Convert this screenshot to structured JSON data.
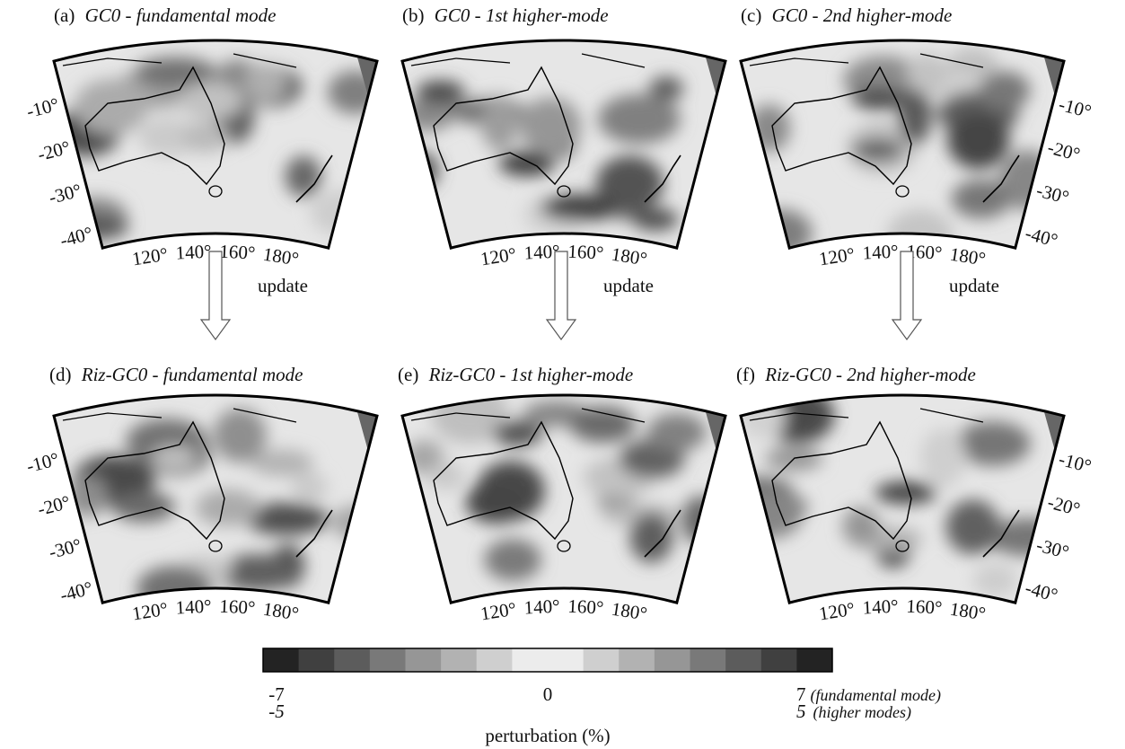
{
  "panels": [
    {
      "label": "(a)",
      "title": "GC0 - fundamental mode",
      "lat_labels": [
        "-10°",
        "-20°",
        "-30°",
        "-40°"
      ],
      "lon_labels": [
        "120°",
        "140°",
        "160°",
        "180°"
      ]
    },
    {
      "label": "(b)",
      "title": "GC0 - 1st higher-mode",
      "lat_labels": [],
      "lon_labels": [
        "120°",
        "140°",
        "160°",
        "180°"
      ]
    },
    {
      "label": "(c)",
      "title": "GC0 - 2nd higher-mode",
      "lat_labels": [
        "-10°",
        "-20°",
        "-30°",
        "-40°"
      ],
      "lon_labels": [
        "120°",
        "140°",
        "160°",
        "180°"
      ]
    },
    {
      "label": "(d)",
      "title": "Riz-GC0 - fundamental mode",
      "lat_labels": [
        "-10°",
        "-20°",
        "-30°",
        "-40°"
      ],
      "lon_labels": [
        "120°",
        "140°",
        "160°",
        "180°"
      ]
    },
    {
      "label": "(e)",
      "title": "Riz-GC0 - 1st higher-mode",
      "lat_labels": [],
      "lon_labels": [
        "120°",
        "140°",
        "160°",
        "180°"
      ]
    },
    {
      "label": "(f)",
      "title": "Riz-GC0 - 2nd higher-mode",
      "lat_labels": [
        "-10°",
        "-20°",
        "-30°",
        "-40°"
      ],
      "lon_labels": [
        "120°",
        "140°",
        "160°",
        "180°"
      ]
    }
  ],
  "update_labels": [
    "update",
    "update",
    "update"
  ],
  "colorbar": {
    "title": "perturbation (%)",
    "scales": [
      {
        "min": -7,
        "zero": 0,
        "max": 7,
        "note": "(fundamental mode)"
      },
      {
        "min": -5,
        "max": 5,
        "note": "(higher modes)"
      }
    ]
  }
}
